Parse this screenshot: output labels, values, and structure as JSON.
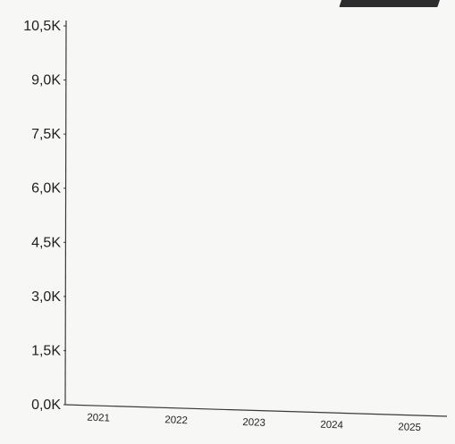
{
  "chart_data": {
    "type": "bar",
    "title": "",
    "xlabel": "",
    "ylabel": "",
    "categories": [
      "2021",
      "2022",
      "2023",
      "2024",
      "2025"
    ],
    "yticks": [
      "0,0K",
      "1,5K",
      "3,0K",
      "4,5K",
      "6,0K",
      "7,5K",
      "9,0K",
      "10,5K"
    ],
    "ylim": [
      0,
      10500
    ],
    "grid": false,
    "series": []
  }
}
